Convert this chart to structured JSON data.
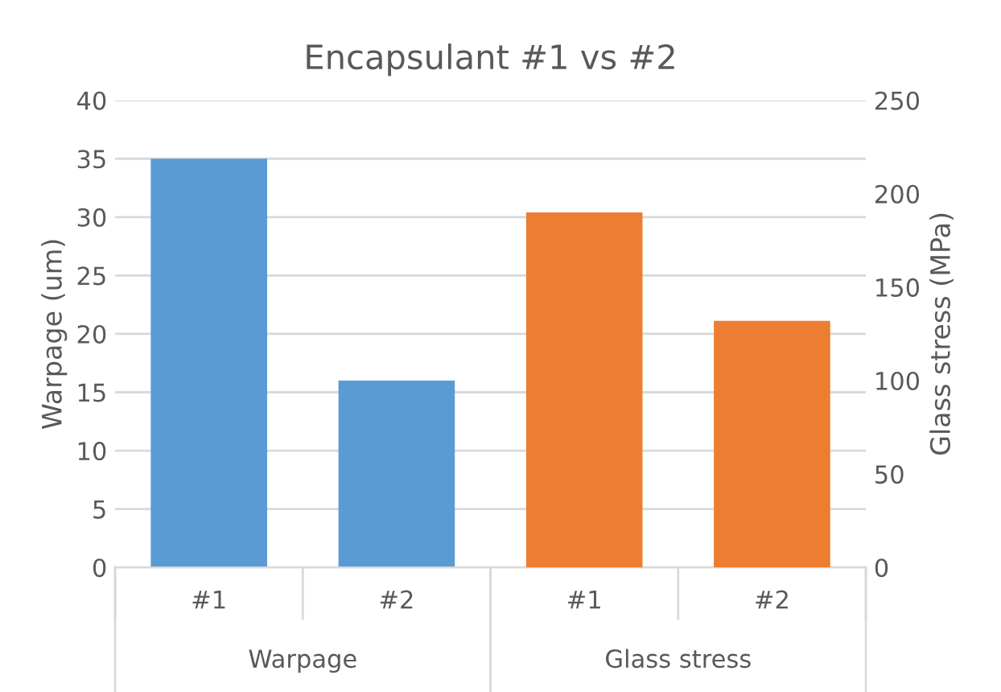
{
  "chart_data": {
    "type": "bar",
    "title": "Encapsulant #1 vs #2",
    "categories": [
      "#1",
      "#2",
      "#1",
      "#2"
    ],
    "series": [
      {
        "color": "#5b9bd5",
        "values": [
          35,
          16,
          null,
          null
        ]
      },
      {
        "color": "#ed7d31",
        "axis": "y2",
        "values": [
          null,
          null,
          190,
          132
        ]
      }
    ],
    "annotations": [
      "Warpage",
      "Glass stress"
    ],
    "ylabel": "Warpage (um)",
    "y2label": "Glass stress (MPa)",
    "ylim": [
      0,
      40
    ],
    "yticks": [
      0,
      5,
      10,
      15,
      20,
      25,
      30,
      35,
      40
    ],
    "y2lim": [
      0,
      250
    ],
    "y2ticks": [
      0,
      50,
      100,
      150,
      200,
      250
    ],
    "grid": "y",
    "legend": false
  }
}
